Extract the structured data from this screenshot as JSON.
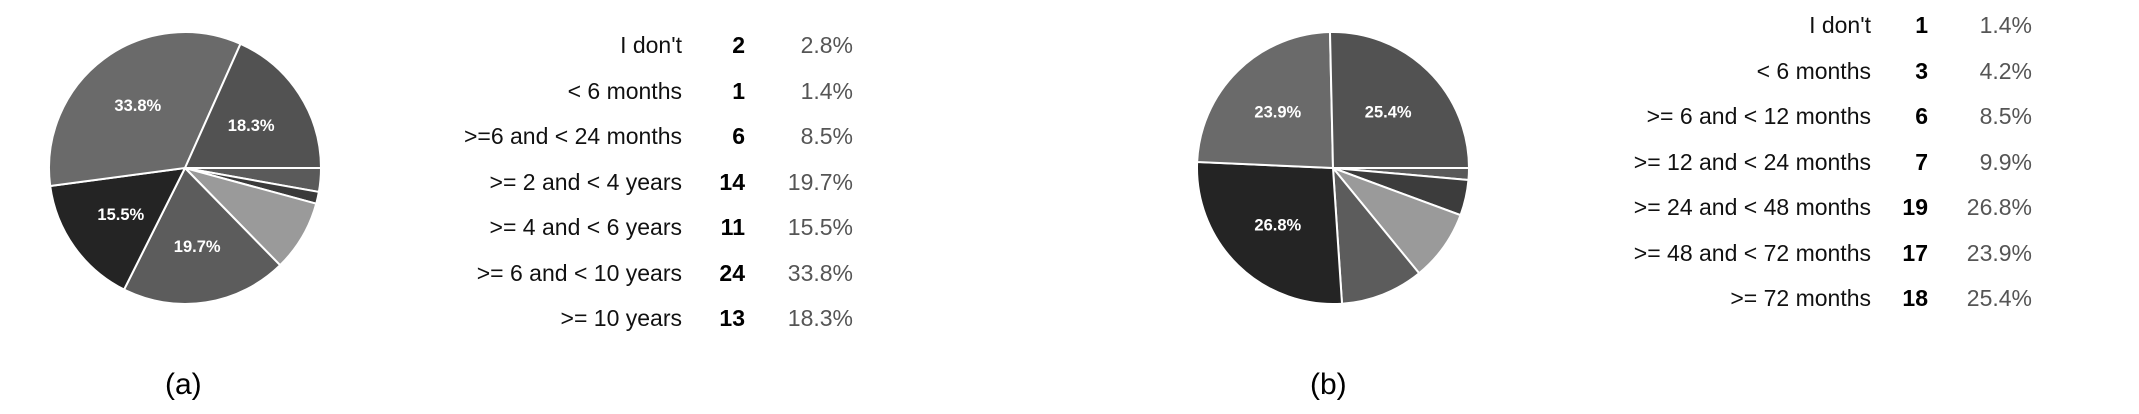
{
  "chart_data": [
    {
      "type": "pie",
      "caption": "(a)",
      "categories": [
        "I don't",
        "< 6 months",
        ">=6 and < 24 months",
        ">= 2 and < 4 years",
        ">= 4 and < 6 years",
        ">= 6 and < 10 years",
        ">= 10 years"
      ],
      "counts": [
        "2",
        "1",
        "6",
        "14",
        "11",
        "24",
        "13"
      ],
      "percents": [
        "2.8%",
        "1.4%",
        "8.5%",
        "19.7%",
        "15.5%",
        "33.8%",
        "18.3%"
      ],
      "values": [
        2,
        1,
        6,
        14,
        11,
        24,
        13
      ],
      "slice_labels": [
        "",
        "",
        "",
        "19.7%",
        "15.5%",
        "33.8%",
        "18.3%"
      ],
      "colors": [
        "#5a5a5a",
        "#3a3a3a",
        "#9a9a9a",
        "#5c5c5c",
        "#242424",
        "#6a6a6a",
        "#525252"
      ]
    },
    {
      "type": "pie",
      "caption": "(b)",
      "categories": [
        "I don't",
        "< 6 months",
        ">= 6 and < 12 months",
        ">= 12 and < 24 months",
        ">= 24 and < 48 months",
        ">= 48 and < 72 months",
        ">= 72 months"
      ],
      "counts": [
        "1",
        "3",
        "6",
        "7",
        "19",
        "17",
        "18"
      ],
      "percents": [
        "1.4%",
        "4.2%",
        "8.5%",
        "9.9%",
        "26.8%",
        "23.9%",
        "25.4%"
      ],
      "values": [
        1,
        3,
        6,
        7,
        19,
        17,
        18
      ],
      "slice_labels": [
        "",
        "",
        "",
        "",
        "26.8%",
        "23.9%",
        "25.4%"
      ],
      "colors": [
        "#5a5a5a",
        "#3c3c3c",
        "#9a9a9a",
        "#5c5c5c",
        "#242424",
        "#6a6a6a",
        "#525252"
      ]
    }
  ]
}
